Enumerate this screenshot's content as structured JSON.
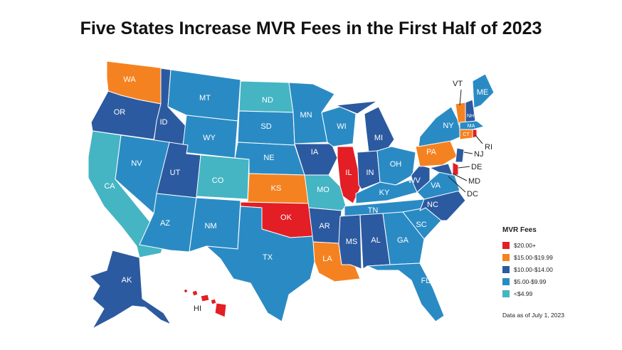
{
  "title": "Five States Increase MVR Fees in the First Half of 2023",
  "legend": {
    "title": "MVR Fees",
    "items": [
      {
        "label": "$20.00+",
        "color": "#e31e24"
      },
      {
        "label": "$15.00-$19.99",
        "color": "#f58220"
      },
      {
        "label": "$10.00-$14.00",
        "color": "#2c5aa0"
      },
      {
        "label": "$5.00-$9.99",
        "color": "#2a8bc4"
      },
      {
        "label": "<$4.99",
        "color": "#45b5c4"
      }
    ]
  },
  "note": "Data as of July 1, 2023",
  "states": {
    "WA": "WA",
    "OR": "OR",
    "CA": "CA",
    "ID": "ID",
    "NV": "NV",
    "MT": "MT",
    "WY": "WY",
    "UT": "UT",
    "AZ": "AZ",
    "CO": "CO",
    "NM": "NM",
    "ND": "ND",
    "SD": "SD",
    "NE": "NE",
    "KS": "KS",
    "OK": "OK",
    "TX": "TX",
    "MN": "MN",
    "IA": "IA",
    "MO": "MO",
    "AR": "AR",
    "LA": "LA",
    "WI": "WI",
    "IL": "IL",
    "MI": "MI",
    "IN": "IN",
    "OH": "OH",
    "KY": "KY",
    "TN": "TN",
    "MS": "MS",
    "AL": "AL",
    "GA": "GA",
    "FL": "FL",
    "SC": "SC",
    "NC": "NC",
    "VA": "VA",
    "WV": "WV",
    "PA": "PA",
    "NY": "NY",
    "VT": "VT",
    "NH": "NH",
    "ME": "ME",
    "MA": "MA",
    "CT": "CT",
    "RI": "RI",
    "NJ": "NJ",
    "DE": "DE",
    "MD": "MD",
    "DC": "DC",
    "AK": "AK",
    "HI": "HI"
  }
}
